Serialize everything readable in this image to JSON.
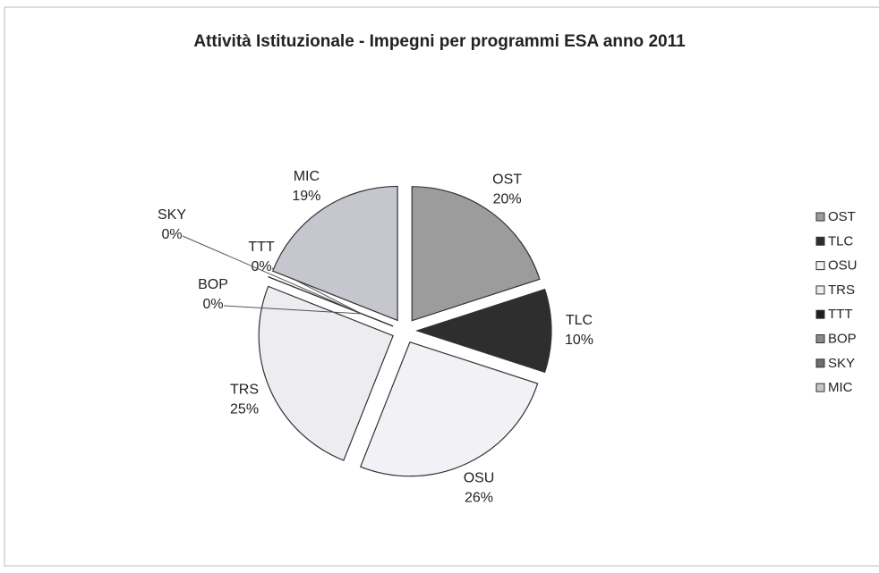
{
  "chart_data": {
    "type": "pie",
    "title": "Attività Istituzionale - Impegni per programmi ESA anno 2011",
    "categories": [
      "OST",
      "TLC",
      "OSU",
      "TRS",
      "TTT",
      "BOP",
      "SKY",
      "MIC"
    ],
    "values": [
      20,
      10,
      26,
      25,
      0,
      0,
      0,
      19
    ],
    "value_labels": [
      "20%",
      "10%",
      "26%",
      "25%",
      "0%",
      "0%",
      "0%",
      "19%"
    ],
    "colors": [
      "#9c9c9c",
      "#2e2e2e",
      "#f1f1f6",
      "#ececf1",
      "#1e1e1e",
      "#8a8a8a",
      "#6e6e6e",
      "#c6c6cf"
    ],
    "legend": "right"
  }
}
